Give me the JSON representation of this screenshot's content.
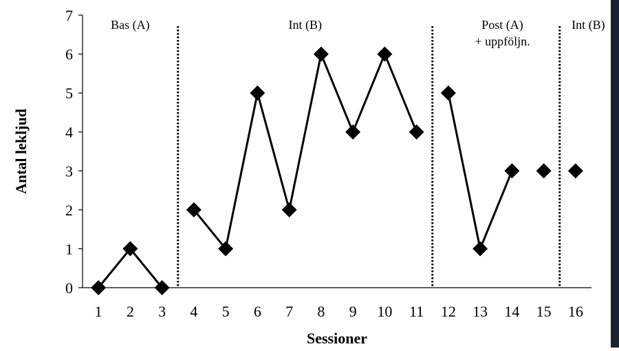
{
  "chart_data": {
    "type": "line",
    "title": "",
    "xlabel": "Sessioner",
    "ylabel": "Antal lekljud",
    "xlim": [
      0.5,
      16.5
    ],
    "ylim": [
      0,
      7
    ],
    "x_ticks": [
      1,
      2,
      3,
      4,
      5,
      6,
      7,
      8,
      9,
      10,
      11,
      12,
      13,
      14,
      15,
      16
    ],
    "y_ticks": [
      0,
      1,
      2,
      3,
      4,
      5,
      6,
      7
    ],
    "grid": false,
    "legend": "none",
    "marker": "diamond",
    "line_color": "#000000",
    "segments": [
      {
        "x": [
          1,
          2,
          3
        ],
        "y": [
          0,
          1,
          0
        ]
      },
      {
        "x": [
          4,
          5,
          6,
          7,
          8,
          9,
          10,
          11
        ],
        "y": [
          2,
          1,
          5,
          2,
          6,
          4,
          6,
          4
        ]
      },
      {
        "x": [
          12,
          13,
          14
        ],
        "y": [
          5,
          1,
          3
        ]
      },
      {
        "x": [
          15
        ],
        "y": [
          3
        ]
      },
      {
        "x": [
          16
        ],
        "y": [
          3
        ]
      }
    ],
    "phase_dividers": [
      3.5,
      11.5,
      15.5
    ],
    "phases": [
      {
        "lines": [
          "Bas (A)"
        ],
        "x_center": 2
      },
      {
        "lines": [
          "Int (B)"
        ],
        "x_center": 7.5
      },
      {
        "lines": [
          "Post (A)",
          "+ uppföljn."
        ],
        "x_center": 13.7
      },
      {
        "lines": [
          "Int (B)"
        ],
        "x_center": 16.4
      }
    ]
  }
}
